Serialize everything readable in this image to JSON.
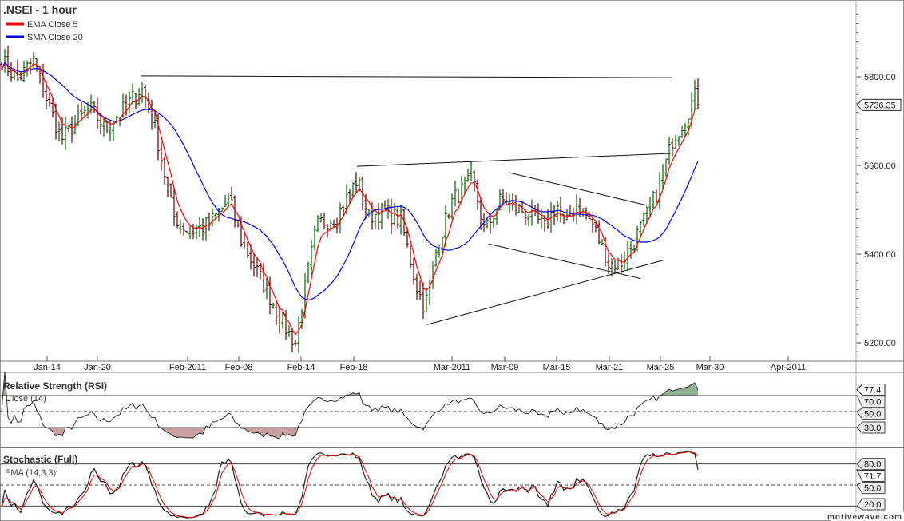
{
  "chart_data": {
    "type": "ohlc",
    "title": ".NSEI - 1 hour",
    "legend": [
      {
        "label": "EMA Close 5",
        "color": "#ff0000"
      },
      {
        "label": "SMA Close 20",
        "color": "#0000ff"
      }
    ],
    "legend_placement": "top-left",
    "x_unit": "hourly bar index",
    "x_ticks": [
      {
        "bar": 14.25,
        "label": "Jan-14"
      },
      {
        "bar": 30,
        "label": "Jan-20"
      },
      {
        "bar": 58.25,
        "label": "Feb-2011"
      },
      {
        "bar": 74.25,
        "label": "Feb-08"
      },
      {
        "bar": 93.75,
        "label": "Feb-14"
      },
      {
        "bar": 110.25,
        "label": "Feb-18"
      },
      {
        "bar": 141,
        "label": "Mar-2011"
      },
      {
        "bar": 157.5,
        "label": "Mar-09"
      },
      {
        "bar": 173.75,
        "label": "Mar-15"
      },
      {
        "bar": 190.25,
        "label": "Mar-21"
      },
      {
        "bar": 206.25,
        "label": "Mar-25"
      },
      {
        "bar": 221.75,
        "label": "Mar-30"
      },
      {
        "bar": 246.25,
        "label": "Apr-2011"
      }
    ],
    "ylim": [
      5170,
      5980
    ],
    "y_ticks": [
      {
        "value": 5200,
        "label": "5200.00"
      },
      {
        "value": 5400,
        "label": "5400.00"
      },
      {
        "value": 5600,
        "label": "5600.00"
      },
      {
        "value": 5800,
        "label": "5800.00"
      }
    ],
    "last_price": {
      "value": 5736.35,
      "label": "5736.35"
    },
    "close_path": [
      [
        0,
        5838
      ],
      [
        5,
        5793
      ],
      [
        10,
        5838
      ],
      [
        13.75,
        5757
      ],
      [
        18.75,
        5658
      ],
      [
        27.5,
        5730
      ],
      [
        32.5,
        5685
      ],
      [
        37.5,
        5721
      ],
      [
        43.75,
        5775
      ],
      [
        47.5,
        5703
      ],
      [
        53.75,
        5486
      ],
      [
        58.75,
        5450
      ],
      [
        65,
        5468
      ],
      [
        71.25,
        5523
      ],
      [
        75,
        5432
      ],
      [
        83.75,
        5306
      ],
      [
        88.75,
        5234
      ],
      [
        92,
        5200
      ],
      [
        95,
        5324
      ],
      [
        98.75,
        5468
      ],
      [
        105,
        5486
      ],
      [
        111.25,
        5568
      ],
      [
        115,
        5486
      ],
      [
        120,
        5495
      ],
      [
        125,
        5477
      ],
      [
        130,
        5324
      ],
      [
        132.5,
        5279
      ],
      [
        136.25,
        5414
      ],
      [
        141.25,
        5523
      ],
      [
        147.5,
        5568
      ],
      [
        151.25,
        5450
      ],
      [
        156.25,
        5523
      ],
      [
        161.25,
        5505
      ],
      [
        166.25,
        5486
      ],
      [
        170,
        5459
      ],
      [
        173.75,
        5514
      ],
      [
        176.25,
        5459
      ],
      [
        180,
        5514
      ],
      [
        185,
        5468
      ],
      [
        190,
        5378
      ],
      [
        193.75,
        5378
      ],
      [
        197.5,
        5423
      ],
      [
        202.5,
        5495
      ],
      [
        206.25,
        5559
      ],
      [
        210,
        5658
      ],
      [
        213.75,
        5703
      ],
      [
        217,
        5757
      ],
      [
        218,
        5736
      ]
    ],
    "trendlines": [
      {
        "from": [
          43.75,
          5802
        ],
        "to": [
          210,
          5798
        ]
      },
      {
        "from": [
          111.25,
          5598
        ],
        "to": [
          209.5,
          5627
        ]
      },
      {
        "from": [
          133.25,
          5241
        ],
        "to": [
          207.5,
          5387
        ]
      },
      {
        "from": [
          152.5,
          5423
        ],
        "to": [
          200,
          5345
        ]
      },
      {
        "from": [
          158.75,
          5584
        ],
        "to": [
          202,
          5510
        ]
      }
    ],
    "rsi": {
      "title": "Relative Strength (RSI)",
      "subtitle": "Close (14)",
      "levels": [
        {
          "value": 70,
          "label": "70.0"
        },
        {
          "value": 50,
          "label": "50.0"
        },
        {
          "value": 30,
          "label": "30.0"
        }
      ],
      "last": {
        "value": 77.4,
        "label": "77.4"
      }
    },
    "stochastic": {
      "title": "Stochastic (Full)",
      "subtitle": "EMA (14,3,3)",
      "levels": [
        {
          "value": 80,
          "label": "80.0"
        },
        {
          "value": 50,
          "label": "50.0"
        },
        {
          "value": 20,
          "label": "20.0"
        }
      ],
      "last": {
        "value": 71.7,
        "label": "71.7"
      }
    },
    "colors": {
      "up": "#006600",
      "down": "#660000",
      "ema": "#ff0000",
      "sma": "#0000ff",
      "rsi_over": "#8fb08f",
      "rsi_under": "#c8a0a0"
    }
  },
  "watermark": "motivewave.com"
}
